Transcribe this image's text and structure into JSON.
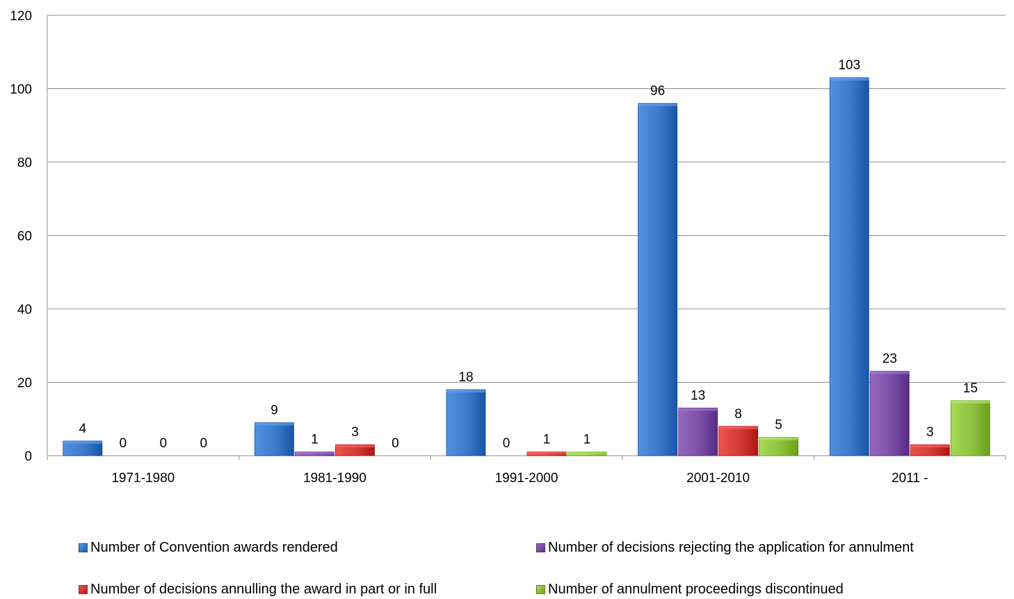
{
  "chart_data": {
    "type": "bar",
    "categories": [
      "1971-1980",
      "1981-1990",
      "1991-2000",
      "2001-2010",
      "2011 -"
    ],
    "series": [
      {
        "name": "Number of Convention awards rendered",
        "color": "#3a78c8",
        "values": [
          4,
          9,
          18,
          96,
          103
        ]
      },
      {
        "name": "Number of decisions rejecting the application for annulment",
        "color": "#7b4fa6",
        "values": [
          0,
          1,
          0,
          13,
          23
        ]
      },
      {
        "name": "Number of decisions annulling the award in part or in full",
        "color": "#d23a35",
        "values": [
          0,
          3,
          1,
          8,
          3
        ]
      },
      {
        "name": "Number of annulment proceedings discontinued",
        "color": "#8ec13e",
        "values": [
          0,
          0,
          1,
          5,
          15
        ]
      }
    ],
    "y_ticks": [
      "0",
      "20",
      "40",
      "60",
      "80",
      "100",
      "120"
    ],
    "ylim": [
      0,
      120
    ],
    "grid": true,
    "legend_position": "bottom",
    "title": "",
    "xlabel": "",
    "ylabel": ""
  }
}
